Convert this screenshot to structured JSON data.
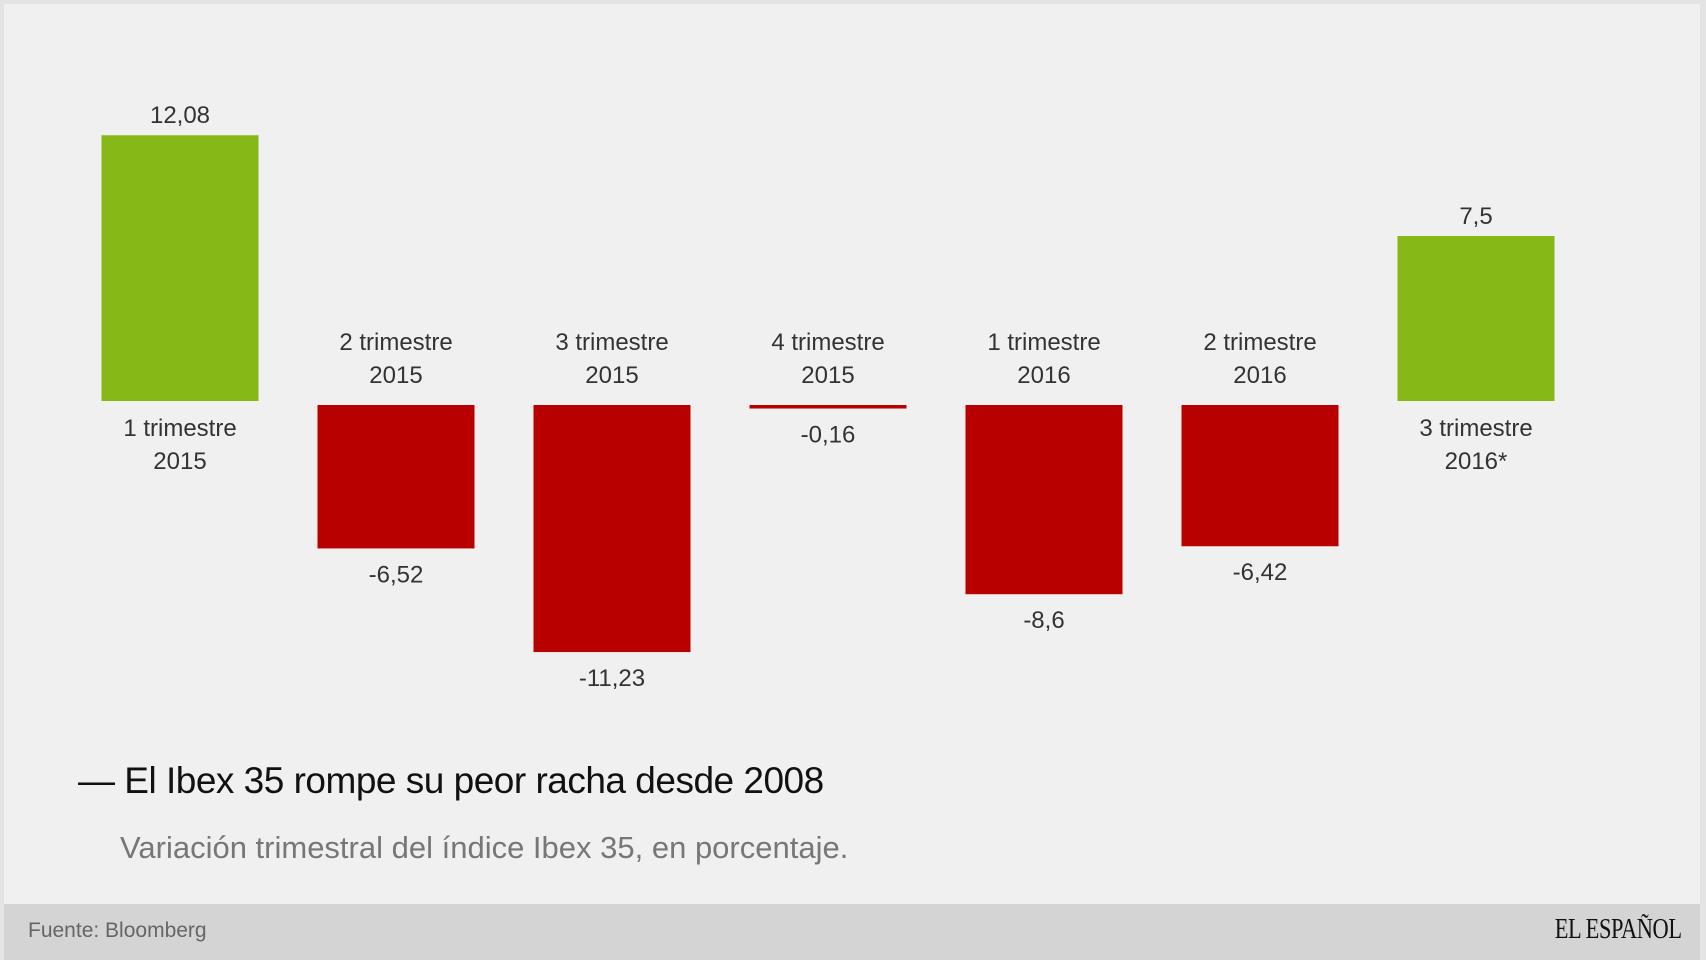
{
  "chart_data": {
    "type": "bar",
    "title": "El Ibex 35 rompe su peor racha desde 2008",
    "subtitle": "Variación trimestral del índice Ibex 35, en porcentaje.",
    "categories": [
      [
        "1 trimestre",
        "2015"
      ],
      [
        "2 trimestre",
        "2015"
      ],
      [
        "3 trimestre",
        "2015"
      ],
      [
        "4 trimestre",
        "2015"
      ],
      [
        "1 trimestre",
        "2016"
      ],
      [
        "2 trimestre",
        "2016"
      ],
      [
        "3 trimestre",
        "2016*"
      ]
    ],
    "values": [
      12.08,
      -6.52,
      -11.23,
      -0.16,
      -8.6,
      -6.42,
      7.5
    ],
    "value_labels": [
      "12,08",
      "-6,52",
      "-11,23",
      "-0,16",
      "-8,6",
      "-6,42",
      "7,5"
    ],
    "colors": {
      "positive": "#86b818",
      "negative": "#b80000"
    },
    "grid": false,
    "legend": "none"
  },
  "title_dash": "—",
  "footer": {
    "source": "Fuente: Bloomberg",
    "logo": "EL ESPAÑOL"
  }
}
